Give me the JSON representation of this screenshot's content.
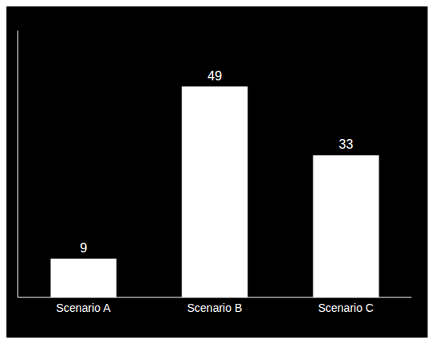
{
  "chart_data": {
    "type": "bar",
    "categories": [
      "Scenario A",
      "Scenario B",
      "Scenario C"
    ],
    "values": [
      9,
      49,
      33
    ],
    "color": "#ffffff",
    "ylim": [
      0,
      62
    ],
    "data_labels": true,
    "tick_labels": "x",
    "grid": false
  }
}
